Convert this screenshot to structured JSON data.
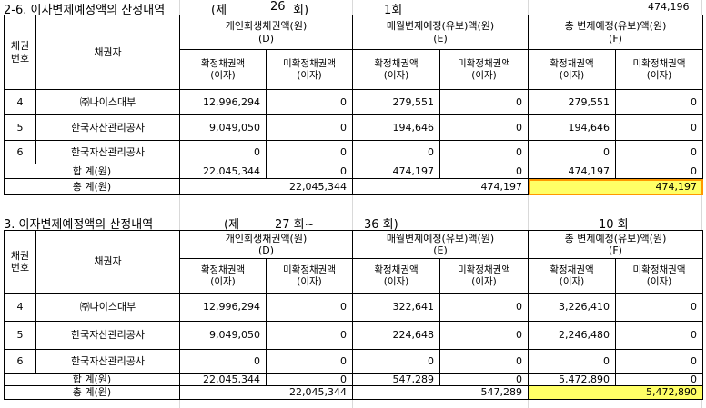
{
  "section1": {
    "title": "2-6. 이자변제예정액의 산정내역",
    "je": "(제",
    "round": "26",
    "hoe": "회)",
    "count_label": "1회",
    "top_right_value": "474,196",
    "header": {
      "no": "채권\n번호",
      "creditor": "채권자",
      "colD": "개인회생채권액(원)\n(D)",
      "colE": "매월변제예정(유보)액(원)\n(E)",
      "colF": "총 변제예정(유보)액(원)\n(F)",
      "confirmed": "확정채권액\n(이자)",
      "unconfirmed": "미확정채권액\n(이자)"
    },
    "rows": [
      {
        "no": "4",
        "name": "㈜나이스대부",
        "d1": "12,996,294",
        "d2": "0",
        "e1": "279,551",
        "e2": "0",
        "f1": "279,551",
        "f2": "0"
      },
      {
        "no": "5",
        "name": "한국자산관리공사",
        "d1": "9,049,050",
        "d2": "0",
        "e1": "194,646",
        "e2": "0",
        "f1": "194,646",
        "f2": "0"
      },
      {
        "no": "6",
        "name": "한국자산관리공사",
        "d1": "0",
        "d2": "0",
        "e1": "0",
        "e2": "0",
        "f1": "0",
        "f2": "0"
      }
    ],
    "subtotal": {
      "label": "합   계(원)",
      "d1": "22,045,344",
      "d2": "0",
      "e1": "474,197",
      "e2": "0",
      "f1": "474,197",
      "f2": "0"
    },
    "total": {
      "label": "총   계(원)",
      "d": "22,045,344",
      "e": "474,197",
      "f": "474,197"
    }
  },
  "section2": {
    "title": "3. 이자변제예정액의 산정내역",
    "je": "(제",
    "round": "27 회~",
    "round2": "36 회)",
    "count_label": "10 회",
    "header": {
      "no": "채권\n번호",
      "creditor": "채권자",
      "colD": "개인회생채권액(원)\n(D)",
      "colE": "매월변제예정(유보)액(원)\n(E)",
      "colF": "총 변제예정(유보)액(원)\n(F)",
      "confirmed": "확정채권액\n(이자)",
      "unconfirmed": "미확정채권액\n(이자)"
    },
    "rows": [
      {
        "no": "4",
        "name": "㈜나이스대부",
        "d1": "12,996,294",
        "d2": "0",
        "e1": "322,641",
        "e2": "0",
        "f1": "3,226,410",
        "f2": "0"
      },
      {
        "no": "5",
        "name": "한국자산관리공사",
        "d1": "9,049,050",
        "d2": "0",
        "e1": "224,648",
        "e2": "0",
        "f1": "2,246,480",
        "f2": "0"
      },
      {
        "no": "6",
        "name": "한국자산관리공사",
        "d1": "0",
        "d2": "0",
        "e1": "0",
        "e2": "0",
        "f1": "0",
        "f2": "0"
      }
    ],
    "subtotal": {
      "label": "합   계(원)",
      "d1": "22,045,344",
      "d2": "0",
      "e1": "547,289",
      "e2": "0",
      "f1": "5,472,890",
      "f2": "0"
    },
    "total": {
      "label": "총   계(원)",
      "d": "22,045,344",
      "e": "547,289",
      "f": "5,472,890"
    }
  },
  "colors": {
    "highlight": "#ffff66",
    "selection": "#ff9900",
    "grid": "#d9d9d9"
  }
}
